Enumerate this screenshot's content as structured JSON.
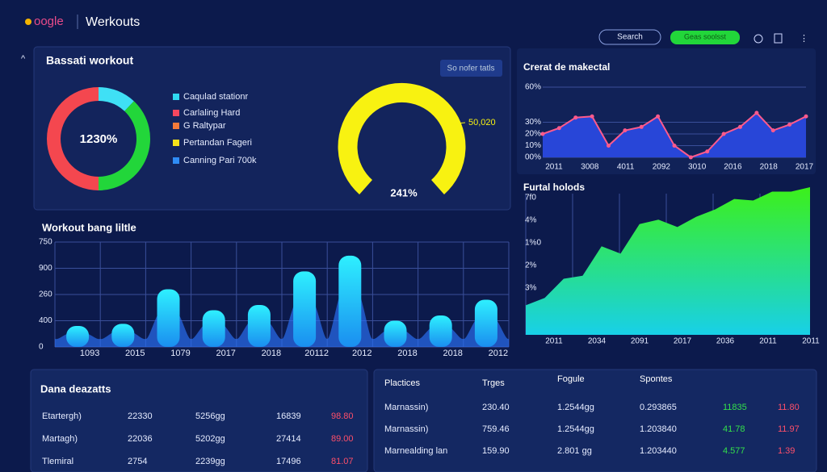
{
  "header": {
    "logo": "oogle",
    "app": "Werkouts",
    "search": "Search",
    "button": "Geas soolsst"
  },
  "summary": {
    "title": "Bassati workout",
    "button": "So nofer tatls",
    "donut": {
      "type": "pie",
      "center_label": "1230%",
      "values": [
        12,
        38,
        50
      ],
      "colors": [
        "#3fe0f5",
        "#22d63a",
        "#f4474f"
      ]
    },
    "legend": [
      {
        "name": "Caqulad stationr",
        "color": "#2fd8f0"
      },
      {
        "name": "Carlaling Hard",
        "color": "#f4475f"
      },
      {
        "name": "G Raltypar",
        "color": "#f57a3a"
      },
      {
        "name": "Pertandan Fageri",
        "color": "#f5e11a"
      },
      {
        "name": "Canning Pari 700k",
        "color": "#2f8cf5"
      }
    ],
    "gauge": {
      "label": "50,020",
      "center_label": "241%",
      "color": "#f8f211"
    }
  },
  "market_chart": {
    "type": "line",
    "title": "Crerat de makectal",
    "color": "#ff5a8c",
    "fill": "#2846d8",
    "values": [
      20,
      25,
      34,
      35,
      10,
      23,
      26,
      35,
      10,
      0,
      5,
      20,
      26,
      38,
      23,
      28,
      35
    ],
    "ylim": [
      0,
      60
    ],
    "yticks": [
      {
        "value": 0,
        "label": "00%"
      },
      {
        "value": 10,
        "label": "10%"
      },
      {
        "value": 20,
        "label": "20%"
      },
      {
        "value": 30,
        "label": "30%"
      },
      {
        "value": 60,
        "label": "60%"
      }
    ],
    "x_labels": [
      "2011",
      "3008",
      "4011",
      "2092",
      "3010",
      "2016",
      "2018",
      "2017"
    ]
  },
  "holds_chart": {
    "type": "area",
    "title": "Furtal holods",
    "ylim": [
      0,
      100
    ],
    "values": [
      20,
      25,
      38,
      40,
      60,
      55,
      75,
      78,
      73,
      80,
      85,
      92,
      91,
      97,
      97,
      100
    ],
    "y_labels": [
      "7f0",
      "4%",
      "1%0",
      "2%",
      "3%"
    ],
    "x_labels": [
      "2011",
      "2034",
      "2091",
      "2017",
      "2036",
      "2011",
      "2011"
    ]
  },
  "workout_chart": {
    "type": "bar",
    "title": "Workout bang liltle",
    "ylim": [
      0,
      100
    ],
    "values": [
      20,
      22,
      55,
      35,
      40,
      72,
      87,
      25,
      30,
      45
    ],
    "y_labels": [
      "750",
      "900",
      "260",
      "400",
      "0"
    ],
    "x_labels": [
      "1093",
      "2015",
      "1079",
      "2017",
      "2018",
      "20112",
      "2012",
      "2018",
      "2018",
      "2012"
    ]
  },
  "table1": {
    "title": "Dana deazatts",
    "rows": [
      [
        "Etartergh)",
        "22330",
        "5256gg",
        "16839",
        "98.80"
      ],
      [
        "Martagh)",
        "22036",
        "5202gg",
        "27414",
        "89.00"
      ],
      [
        "Tlemiral",
        "2754",
        "2239gg",
        "17496",
        "81.07"
      ]
    ]
  },
  "table2": {
    "headers": [
      "Plactices",
      "Trges",
      "Fogule",
      "Spontes"
    ],
    "rows": [
      [
        "Marnassin)",
        "230.40",
        "1.2544gg",
        "0.293865",
        "11835",
        "11.80"
      ],
      [
        "Marnassin)",
        "759.46",
        "1.2544gg",
        "1.203840",
        "41.78",
        "11.97"
      ],
      [
        "Marnealding lan",
        "159.90",
        "2.801 gg",
        "1.203440",
        "4.577",
        "1.39"
      ]
    ]
  }
}
